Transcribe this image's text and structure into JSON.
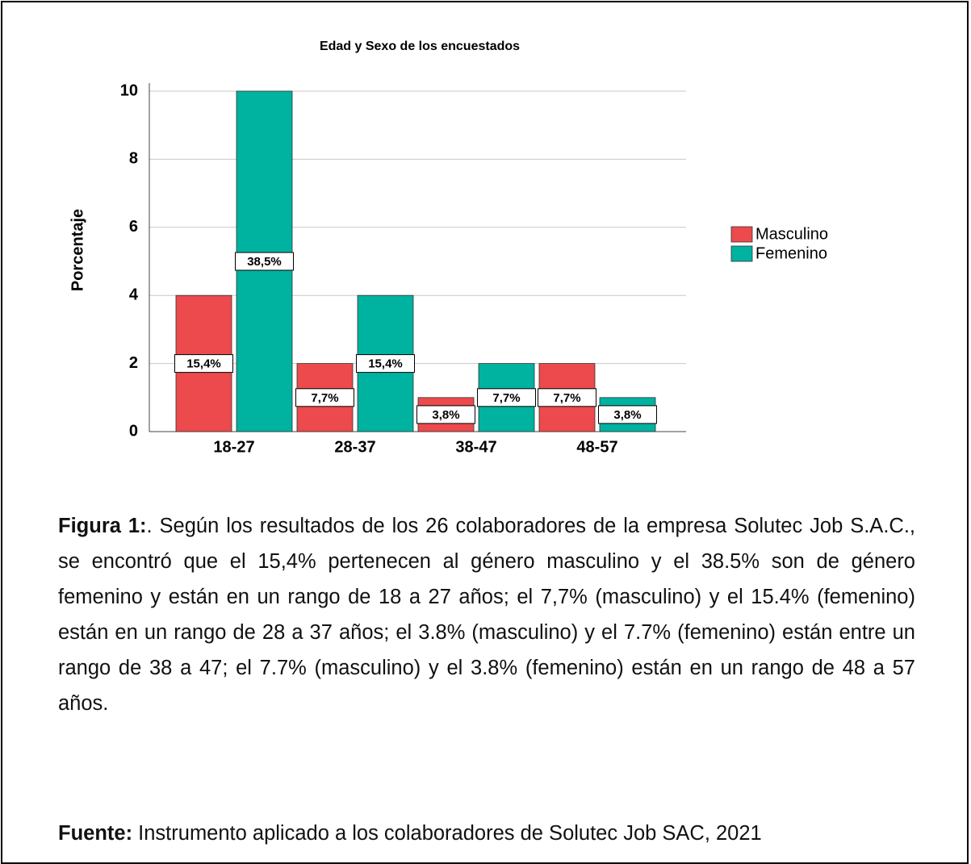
{
  "chart_data": {
    "type": "bar",
    "title": "Edad y Sexo de los encuestados",
    "y_label": "Porcentaje",
    "categories": [
      "18-27",
      "28-37",
      "38-47",
      "48-57"
    ],
    "series": [
      {
        "name": "Masculino",
        "color": "#ec4a4c",
        "values": [
          4,
          2,
          1,
          2
        ],
        "value_labels": [
          "15,4%",
          "7,7%",
          "3,8%",
          "7,7%"
        ]
      },
      {
        "name": "Femenino",
        "color": "#00b2a0",
        "values": [
          10,
          4,
          2,
          1
        ],
        "value_labels": [
          "38,5%",
          "15,4%",
          "7,7%",
          "3,8%"
        ]
      }
    ],
    "ylim": [
      0,
      10
    ],
    "yticks": [
      0,
      2,
      4,
      6,
      8,
      10
    ],
    "grid": true,
    "legend": "right"
  },
  "caption": {
    "label": "Figura 1:",
    "text": ". Según los resultados de los 26 colaboradores de la empresa Solutec Job S.A.C., se encontró que el 15,4% pertenecen al género masculino y el 38.5% son de género femenino y están en un rango de 18 a 27 años; el 7,7% (masculino) y el 15.4% (femenino) están en un rango de 28 a 37 años; el 3.8% (masculino) y el 7.7% (femenino) están entre un rango de 38 a 47; el 7.7% (masculino) y el 3.8% (femenino) están en un rango de 48 a 57 años."
  },
  "source": {
    "label": "Fuente:",
    "text": " Instrumento aplicado a los colaboradores de Solutec Job SAC, 2021"
  }
}
